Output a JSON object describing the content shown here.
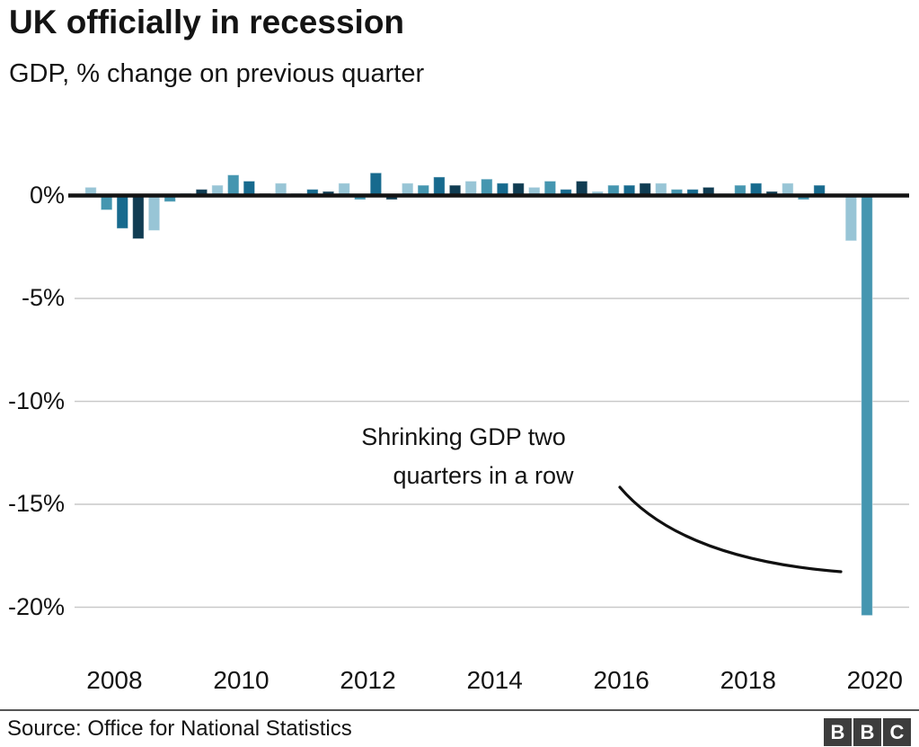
{
  "header": {
    "title": "UK officially in recession",
    "subtitle": "GDP, % change on previous quarter"
  },
  "chart_data": {
    "type": "bar",
    "title": "UK officially in recession",
    "ylabel": "GDP, % change on previous quarter",
    "xlabel": "",
    "ylim": [
      -21.5,
      1.5
    ],
    "grid": "horizontal, negative ticks only",
    "legend": "none",
    "yticks": [
      0,
      -5,
      -10,
      -15,
      -20
    ],
    "ytick_labels": [
      "0%",
      "-5%",
      "-10%",
      "-15%",
      "-20%"
    ],
    "xtick_labels": [
      "2008",
      "2010",
      "2012",
      "2014",
      "2016",
      "2018",
      "2020"
    ],
    "xtick_quarter_index": [
      0,
      8,
      16,
      24,
      32,
      40,
      48
    ],
    "quarter_colors": [
      "#98c5d6",
      "#4596b0",
      "#176a8e",
      "#103c52"
    ],
    "categories": [
      "2008 Q1",
      "2008 Q2",
      "2008 Q3",
      "2008 Q4",
      "2009 Q1",
      "2009 Q2",
      "2009 Q3",
      "2009 Q4",
      "2010 Q1",
      "2010 Q2",
      "2010 Q3",
      "2010 Q4",
      "2011 Q1",
      "2011 Q2",
      "2011 Q3",
      "2011 Q4",
      "2012 Q1",
      "2012 Q2",
      "2012 Q3",
      "2012 Q4",
      "2013 Q1",
      "2013 Q2",
      "2013 Q3",
      "2013 Q4",
      "2014 Q1",
      "2014 Q2",
      "2014 Q3",
      "2014 Q4",
      "2015 Q1",
      "2015 Q2",
      "2015 Q3",
      "2015 Q4",
      "2016 Q1",
      "2016 Q2",
      "2016 Q3",
      "2016 Q4",
      "2017 Q1",
      "2017 Q2",
      "2017 Q3",
      "2017 Q4",
      "2018 Q1",
      "2018 Q2",
      "2018 Q3",
      "2018 Q4",
      "2019 Q1",
      "2019 Q2",
      "2019 Q3",
      "2019 Q4",
      "2020 Q1",
      "2020 Q2"
    ],
    "values": [
      0.4,
      -0.7,
      -1.6,
      -2.1,
      -1.7,
      -0.3,
      0.1,
      0.3,
      0.5,
      1.0,
      0.7,
      0.1,
      0.6,
      0.1,
      0.3,
      0.2,
      0.6,
      -0.2,
      1.1,
      -0.2,
      0.6,
      0.5,
      0.9,
      0.5,
      0.7,
      0.8,
      0.6,
      0.6,
      0.4,
      0.7,
      0.3,
      0.7,
      0.2,
      0.5,
      0.5,
      0.6,
      0.6,
      0.3,
      0.3,
      0.4,
      0.1,
      0.5,
      0.6,
      0.2,
      0.6,
      -0.2,
      0.5,
      0.0,
      -2.2,
      -20.4
    ],
    "annotation": {
      "line1": "Shrinking GDP two",
      "line2": "quarters in a row"
    }
  },
  "footer": {
    "source": "Source: Office for National Statistics",
    "logo_letters": [
      "B",
      "B",
      "C"
    ]
  }
}
